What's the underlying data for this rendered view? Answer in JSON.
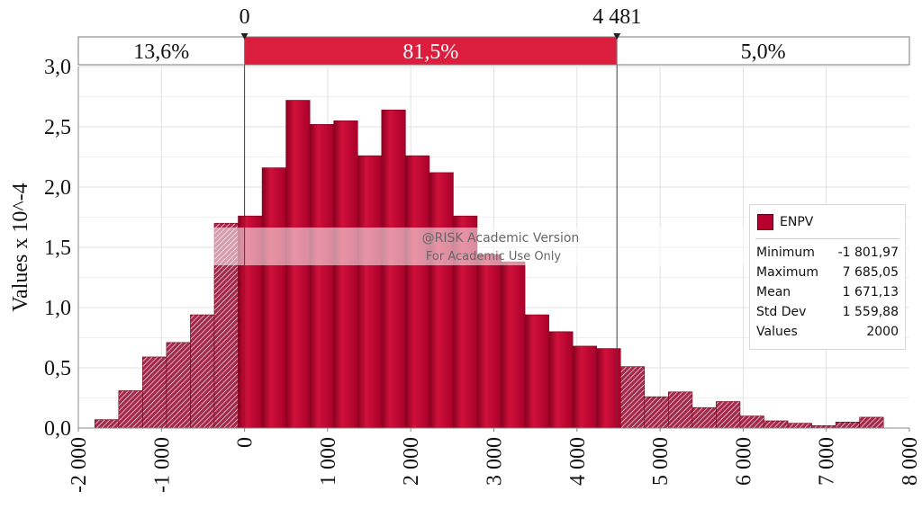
{
  "chart_data": {
    "type": "bar",
    "ylabel": "Values x 10^-4",
    "xlim": [
      -2000,
      8000
    ],
    "ylim": [
      0,
      3.0
    ],
    "x_ticks": [
      -2000,
      -1000,
      0,
      1000,
      2000,
      3000,
      4000,
      5000,
      6000,
      7000,
      8000
    ],
    "x_tick_labels": [
      "-2 000",
      "-1 000",
      "0",
      "1 000",
      "2 000",
      "3 000",
      "4 000",
      "5 000",
      "6 000",
      "7 000",
      "8 000"
    ],
    "y_ticks": [
      0,
      0.5,
      1.0,
      1.5,
      2.0,
      2.5,
      3.0
    ],
    "y_tick_labels": [
      "0,0",
      "0,5",
      "1,0",
      "1,5",
      "2,0",
      "2,5",
      "3,0"
    ],
    "grid": true,
    "bin_start": -1801.97,
    "bin_width": 287.58,
    "values": [
      0.07,
      0.31,
      0.59,
      0.71,
      0.94,
      1.7,
      1.76,
      2.16,
      2.72,
      2.52,
      2.55,
      2.26,
      2.64,
      2.26,
      2.12,
      1.76,
      1.44,
      1.38,
      0.94,
      0.8,
      0.68,
      0.66,
      0.51,
      0.26,
      0.3,
      0.17,
      0.22,
      0.1,
      0.06,
      0.04,
      0.02,
      0.05,
      0.09
    ],
    "delimiters": {
      "left": 0,
      "right": 4481,
      "left_label": "0",
      "right_label": "4 481",
      "segments": [
        {
          "label": "13,6%",
          "highlight": false
        },
        {
          "label": "81,5%",
          "highlight": true
        },
        {
          "label": "5,0%",
          "highlight": false
        }
      ]
    },
    "watermark": [
      "@RISK Academic Version",
      "For Academic Use Only"
    ],
    "legend": {
      "series_name": "ENPV",
      "placement": "right",
      "stats": [
        {
          "label": "Minimum",
          "value": "-1 801,97"
        },
        {
          "label": "Maximum",
          "value": "7 685,05"
        },
        {
          "label": "Mean",
          "value": "1 671,13"
        },
        {
          "label": "Std Dev",
          "value": "1 559,88"
        },
        {
          "label": "Values",
          "value": "2000"
        }
      ]
    },
    "colors": {
      "bar": "#b8002e",
      "bar_dark": "#6e0018",
      "band": "#dc1e3e",
      "grid": "#e0e0e0"
    }
  }
}
